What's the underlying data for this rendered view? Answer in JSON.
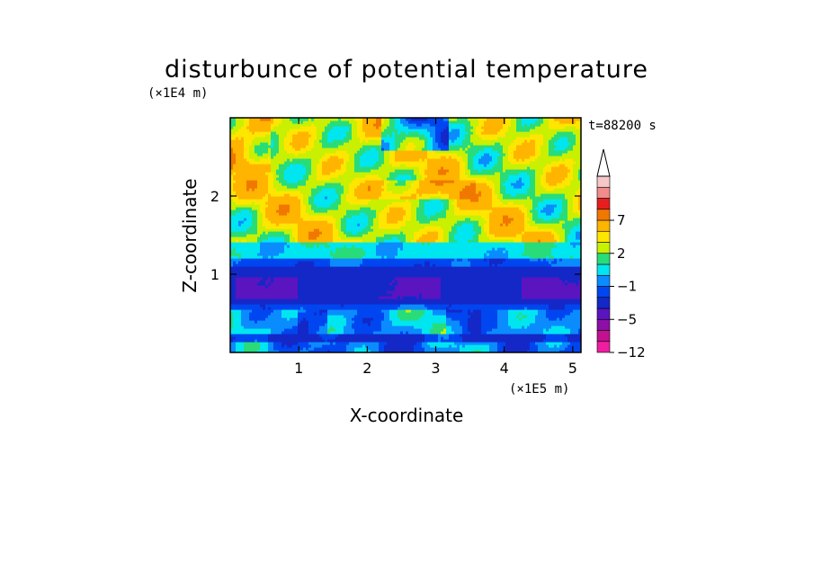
{
  "chart_data": {
    "type": "heatmap",
    "title": "disturbunce of potential temperature",
    "time_label": "t=88200 s",
    "xlabel": "X-coordinate",
    "ylabel": "Z-coordinate",
    "x_unit": "(×1E5 m)",
    "y_unit": "(×1E4 m)",
    "xlim": [
      0,
      5.12
    ],
    "ylim": [
      0,
      3.0
    ],
    "x_ticks": [
      1,
      2,
      3,
      4,
      5
    ],
    "x_tick_labels": [
      "1",
      "2",
      "3",
      "4",
      "5"
    ],
    "y_ticks": [
      1,
      2
    ],
    "y_tick_labels": [
      "1",
      "2"
    ],
    "colorbar": {
      "extend": "max",
      "levels": [
        -12,
        -9,
        -7,
        -5,
        -3,
        -2,
        -1,
        0,
        1,
        2,
        3,
        5,
        7,
        9,
        12
      ],
      "labeled_levels": [
        -12,
        -5,
        -1,
        2,
        7
      ],
      "tick_labels": [
        "−12",
        "−5",
        "−1",
        "2",
        "7"
      ],
      "colors": [
        "#ee1ea0",
        "#c21090",
        "#8c10a8",
        "#5a14c0",
        "#1428c8",
        "#0046f0",
        "#0a8cff",
        "#00e6f0",
        "#28dc7a",
        "#c8f000",
        "#ffe600",
        "#ffb400",
        "#f07800",
        "#e61e1e",
        "#f08c8c",
        "#f5c8c8"
      ]
    },
    "layers_z_ranges": [
      {
        "z": [
          0.0,
          0.2
        ],
        "value_range": [
          -3,
          0
        ],
        "description_color": "mixed blue/green/yellow"
      },
      {
        "z": [
          0.2,
          0.55
        ],
        "value_range": [
          -2,
          0
        ]
      },
      {
        "z": [
          0.55,
          1.1
        ],
        "value_range": [
          -5,
          -3
        ]
      },
      {
        "z": [
          1.1,
          1.4
        ],
        "value_range": [
          -1,
          0
        ]
      },
      {
        "z": [
          1.4,
          3.0
        ],
        "value_range": [
          0,
          5
        ]
      }
    ]
  }
}
